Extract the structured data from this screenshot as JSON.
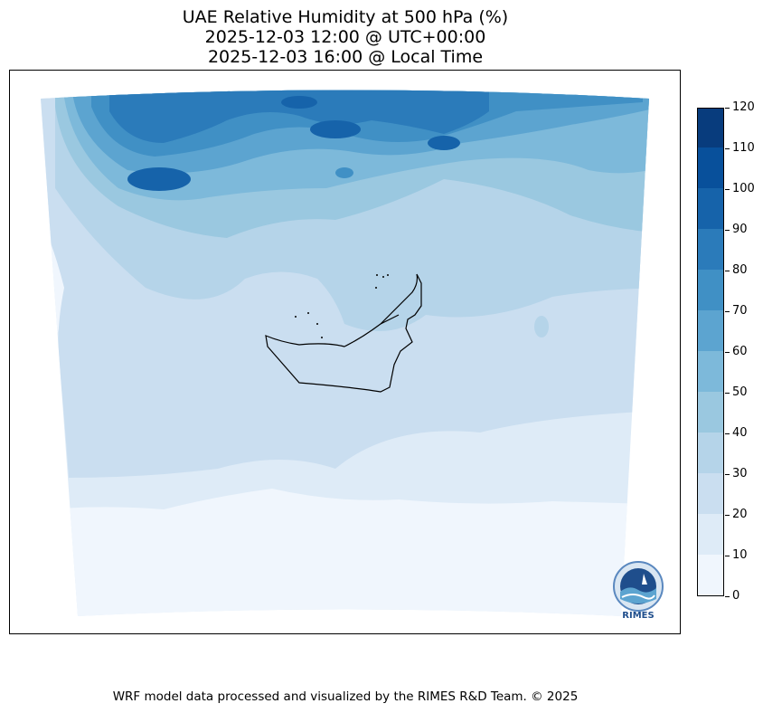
{
  "title": {
    "line1": "UAE Relative Humidity at 500 hPa (%)",
    "line2": "2025-12-03 12:00 @ UTC+00:00",
    "line3": "2025-12-03 16:00 @ Local Time"
  },
  "colorbar": {
    "ticks": [
      "0",
      "10",
      "20",
      "30",
      "40",
      "50",
      "60",
      "70",
      "80",
      "90",
      "100",
      "110",
      "120"
    ],
    "colors": [
      "#f0f6fd",
      "#deebf7",
      "#cadef0",
      "#b5d4e9",
      "#9ac8e0",
      "#7db9da",
      "#5ca4d0",
      "#4090c5",
      "#2b7bba",
      "#1663aa",
      "#08509b",
      "#083c7d"
    ]
  },
  "logo": {
    "text": "RIMES",
    "icon": "rimes-logo-icon"
  },
  "footer": "WRF model data processed and visualized by the RIMES R&D Team. © 2025"
}
